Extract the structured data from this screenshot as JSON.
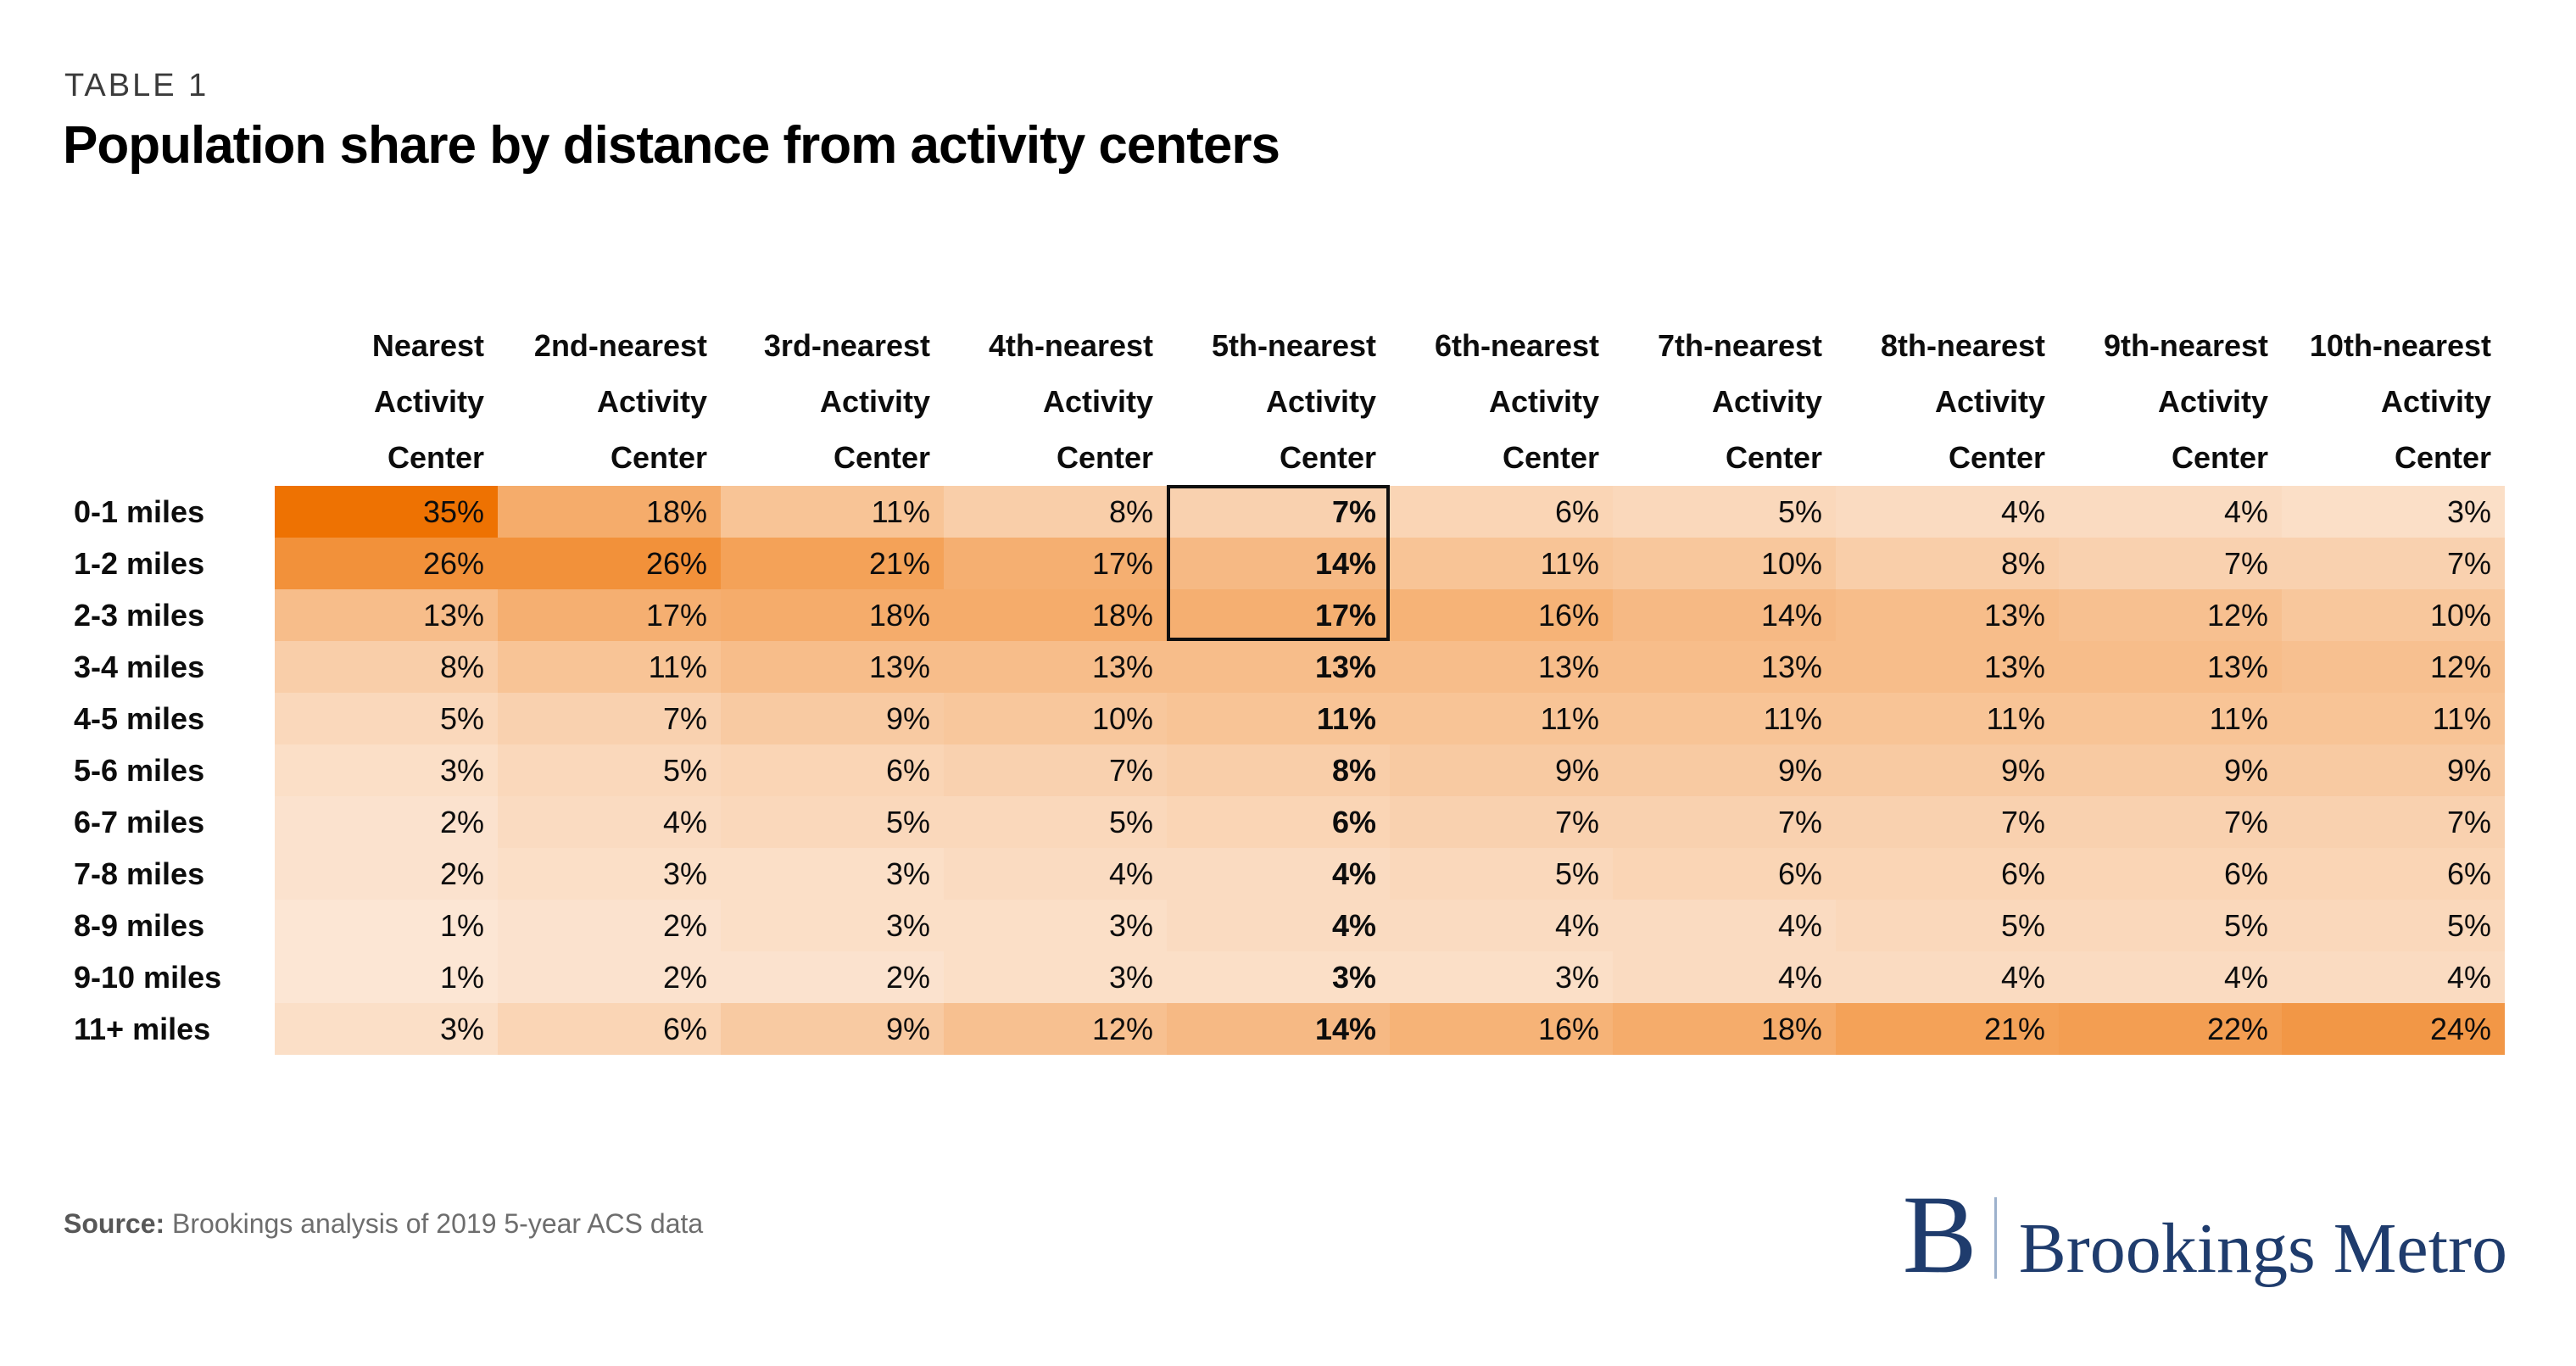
{
  "page": {
    "kicker": "TABLE 1",
    "title": "Population share by distance from activity centers"
  },
  "source": {
    "label": "Source:",
    "text": " Brookings analysis of 2019 5-year ACS data"
  },
  "logo": {
    "mark": "B",
    "name": "Brookings Metro",
    "navy": "#1f3c6d",
    "divider_blue": "#9db1cc"
  },
  "chart_data": {
    "type": "heatmap",
    "kicker": "TABLE 1",
    "title": "Population share by distance from activity centers",
    "unit": "%",
    "col_headers": [
      [
        "Nearest",
        "Activity",
        "Center"
      ],
      [
        "2nd-nearest",
        "Activity",
        "Center"
      ],
      [
        "3rd-nearest",
        "Activity",
        "Center"
      ],
      [
        "4th-nearest",
        "Activity",
        "Center"
      ],
      [
        "5th-nearest",
        "Activity",
        "Center"
      ],
      [
        "6th-nearest",
        "Activity",
        "Center"
      ],
      [
        "7th-nearest",
        "Activity",
        "Center"
      ],
      [
        "8th-nearest",
        "Activity",
        "Center"
      ],
      [
        "9th-nearest",
        "Activity",
        "Center"
      ],
      [
        "10th-nearest",
        "Activity",
        "Center"
      ]
    ],
    "row_labels": [
      "0-1 miles",
      "1-2 miles",
      "2-3 miles",
      "3-4 miles",
      "4-5 miles",
      "5-6 miles",
      "6-7 miles",
      "7-8 miles",
      "8-9 miles",
      "9-10 miles",
      "11+ miles"
    ],
    "values": [
      [
        35,
        18,
        11,
        8,
        7,
        6,
        5,
        4,
        4,
        3
      ],
      [
        26,
        26,
        21,
        17,
        14,
        11,
        10,
        8,
        7,
        7
      ],
      [
        13,
        17,
        18,
        18,
        17,
        16,
        14,
        13,
        12,
        10
      ],
      [
        8,
        11,
        13,
        13,
        13,
        13,
        13,
        13,
        13,
        12
      ],
      [
        5,
        7,
        9,
        10,
        11,
        11,
        11,
        11,
        11,
        11
      ],
      [
        3,
        5,
        6,
        7,
        8,
        9,
        9,
        9,
        9,
        9
      ],
      [
        2,
        4,
        5,
        5,
        6,
        7,
        7,
        7,
        7,
        7
      ],
      [
        2,
        3,
        3,
        4,
        4,
        5,
        6,
        6,
        6,
        6
      ],
      [
        1,
        2,
        3,
        3,
        4,
        4,
        4,
        5,
        5,
        5
      ],
      [
        1,
        2,
        2,
        3,
        3,
        3,
        4,
        4,
        4,
        4
      ],
      [
        3,
        6,
        9,
        12,
        14,
        16,
        18,
        21,
        22,
        24
      ]
    ],
    "highlight": {
      "bold_column_index": 4,
      "boxed_rows": [
        0,
        1,
        2
      ],
      "box_color": "#0f0f0f"
    },
    "color_scale": {
      "min_value": 0,
      "max_value": 35,
      "min_color": "#FCE9DA",
      "max_color": "#EE7202"
    },
    "legend": "none",
    "grid": "off"
  }
}
